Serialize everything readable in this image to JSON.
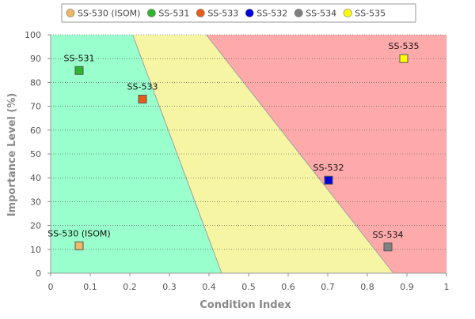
{
  "chart_data": {
    "type": "scatter",
    "xlabel": "Condition Index",
    "ylabel": "Importance Level (%)",
    "xlim": [
      0,
      1
    ],
    "ylim": [
      0,
      100
    ],
    "x_ticks": [
      "0",
      "0.1",
      "0.2",
      "0.3",
      "0.4",
      "0.5",
      "0.6",
      "0.7",
      "0.8",
      "0.9",
      "1"
    ],
    "y_ticks": [
      "0",
      "10",
      "20",
      "30",
      "40",
      "50",
      "60",
      "70",
      "80",
      "90",
      "100"
    ],
    "grid": "horizontal dotted",
    "legend_position": "top",
    "zones": [
      {
        "color": "#99ffcc",
        "boundary": [
          [
            0.207,
            100
          ],
          [
            0.432,
            0
          ]
        ]
      },
      {
        "color": "#f5f5a3",
        "boundary": [
          [
            0.393,
            100
          ],
          [
            0.866,
            0
          ]
        ]
      },
      {
        "color": "#ffaaaa"
      }
    ],
    "series": [
      {
        "name": "SS-530 (ISOM)",
        "color": "#f0b865",
        "x": 0.072,
        "y": 11.5
      },
      {
        "name": "SS-531",
        "color": "#2db52d",
        "x": 0.072,
        "y": 85
      },
      {
        "name": "SS-533",
        "color": "#e85c17",
        "x": 0.232,
        "y": 73
      },
      {
        "name": "SS-532",
        "color": "#0000dd",
        "x": 0.702,
        "y": 39
      },
      {
        "name": "SS-534",
        "color": "#808080",
        "x": 0.852,
        "y": 11
      },
      {
        "name": "SS-535",
        "color": "#ffff00",
        "x": 0.892,
        "y": 90
      }
    ]
  }
}
